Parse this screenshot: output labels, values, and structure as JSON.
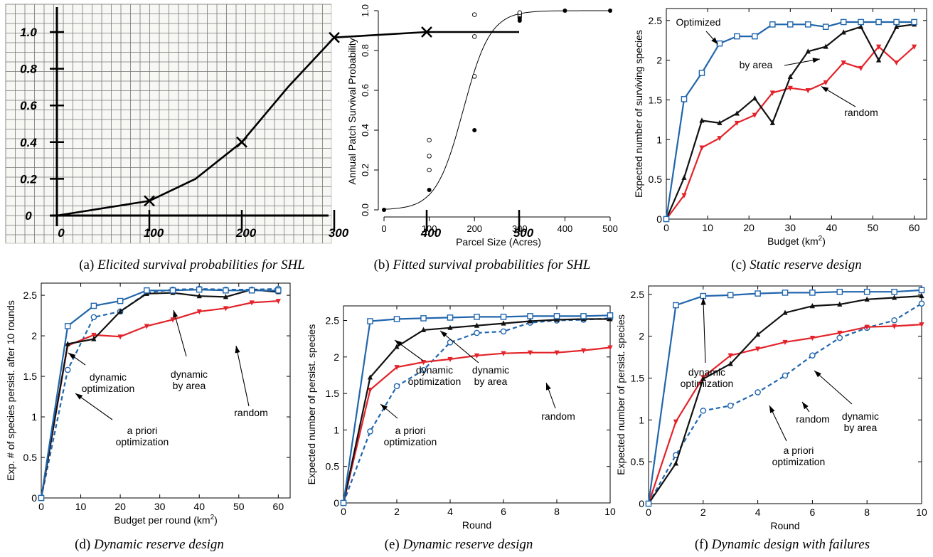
{
  "captions": {
    "a": {
      "label": "(a)",
      "text": "Elicited survival probabilities for SHL"
    },
    "b": {
      "label": "(b)",
      "text": "Fitted survival probabilities for SHL"
    },
    "c": {
      "label": "(c)",
      "text": "Static reserve design"
    },
    "d": {
      "label": "(d)",
      "text": "Dynamic reserve design"
    },
    "e": {
      "label": "(e)",
      "text": "Dynamic reserve design"
    },
    "f": {
      "label": "(f)",
      "text": "Dynamic design with failures"
    }
  },
  "colors": {
    "blue": "#2166ac",
    "black": "#111111",
    "red": "#e3232a"
  },
  "chart_data": [
    {
      "id": "a",
      "type": "line",
      "style": "hand-drawn on graph paper",
      "x_ticks": [
        "0",
        "100",
        "200",
        "300",
        "400",
        "500"
      ],
      "y_ticks": [
        "0",
        "0.2",
        "0.4",
        "0.6",
        "0.8",
        "1.0"
      ],
      "xlim": [
        0,
        500
      ],
      "ylim": [
        0,
        1.0
      ],
      "points": [
        [
          100,
          0.08
        ],
        [
          200,
          0.4
        ],
        [
          300,
          0.97
        ],
        [
          400,
          1.0
        ]
      ],
      "curve": [
        [
          0,
          0
        ],
        [
          100,
          0.08
        ],
        [
          150,
          0.2
        ],
        [
          200,
          0.4
        ],
        [
          250,
          0.7
        ],
        [
          300,
          0.97
        ],
        [
          400,
          1.0
        ],
        [
          500,
          1.0
        ]
      ]
    },
    {
      "id": "b",
      "type": "scatter",
      "xlabel": "Parcel Size (Acres)",
      "ylabel": "Annual Patch Survival Probability",
      "xlim": [
        0,
        500
      ],
      "ylim": [
        0,
        1.0
      ],
      "x_ticks": [
        0,
        100,
        200,
        300,
        400,
        500
      ],
      "y_ticks": [
        "0.0",
        "0.2",
        "0.4",
        "0.6",
        "0.8",
        "1.0"
      ],
      "filled_points": [
        [
          0,
          0.0
        ],
        [
          100,
          0.1
        ],
        [
          200,
          0.4
        ],
        [
          300,
          0.95
        ],
        [
          300,
          0.96
        ],
        [
          400,
          1.0
        ],
        [
          500,
          1.0
        ]
      ],
      "open_points": [
        [
          100,
          0.2
        ],
        [
          100,
          0.27
        ],
        [
          100,
          0.35
        ],
        [
          200,
          0.67
        ],
        [
          200,
          0.87
        ],
        [
          200,
          0.98
        ],
        [
          300,
          0.97
        ],
        [
          300,
          0.98
        ],
        [
          300,
          0.99
        ]
      ],
      "fit_curve": {
        "type": "logistic",
        "midpoint": 175,
        "scale": 30
      }
    },
    {
      "id": "c",
      "type": "line",
      "xlabel": "Budget (km²)",
      "ylabel": "Expected number of surviving species",
      "xlim": [
        0,
        63
      ],
      "ylim": [
        0,
        2.65
      ],
      "x_ticks": [
        0,
        10,
        20,
        30,
        40,
        50,
        60
      ],
      "y_ticks": [
        "0",
        "0.5",
        "1",
        "1.5",
        "2",
        "2.5"
      ],
      "series": [
        {
          "name": "Optimized",
          "color": "blue",
          "marker": "square",
          "x": [
            0,
            4.3,
            8.6,
            12.9,
            17.1,
            21.4,
            25.7,
            30,
            34.3,
            38.6,
            42.9,
            47.1,
            51.4,
            55.7,
            60
          ],
          "y": [
            0,
            1.51,
            1.84,
            2.21,
            2.3,
            2.3,
            2.45,
            2.45,
            2.45,
            2.42,
            2.48,
            2.48,
            2.48,
            2.48,
            2.48
          ]
        },
        {
          "name": "by area",
          "color": "black",
          "marker": "triangle-up",
          "x": [
            0,
            4.3,
            8.6,
            12.9,
            17.1,
            21.4,
            25.7,
            30,
            34.3,
            38.6,
            42.9,
            47.1,
            51.4,
            55.7,
            60
          ],
          "y": [
            0,
            0.52,
            1.24,
            1.21,
            1.33,
            1.52,
            1.21,
            1.79,
            2.11,
            2.17,
            2.35,
            2.42,
            2.0,
            2.42,
            2.45
          ]
        },
        {
          "name": "random",
          "color": "red",
          "marker": "triangle-down",
          "x": [
            0,
            4.3,
            8.6,
            12.9,
            17.1,
            21.4,
            25.7,
            30,
            34.3,
            38.6,
            42.9,
            47.1,
            51.4,
            55.7,
            60
          ],
          "y": [
            0,
            0.3,
            0.9,
            1.02,
            1.21,
            1.31,
            1.59,
            1.65,
            1.62,
            1.72,
            1.97,
            1.9,
            2.17,
            1.97,
            2.17
          ]
        }
      ],
      "annotations": [
        "Optimized",
        "by area",
        "random"
      ]
    },
    {
      "id": "d",
      "type": "line",
      "xlabel": "Budget per round (km²)",
      "ylabel": "Exp. # of species persist. after 10 rounds",
      "xlim": [
        0,
        63
      ],
      "ylim": [
        0,
        2.65
      ],
      "x_ticks": [
        0,
        10,
        20,
        30,
        40,
        50,
        60
      ],
      "y_ticks": [
        "0",
        "0.5",
        "1",
        "1.5",
        "2",
        "2.5"
      ],
      "series": [
        {
          "name": "dynamic optimization",
          "color": "blue",
          "marker": "square",
          "x": [
            0,
            6.7,
            13.3,
            20,
            26.7,
            33.3,
            40,
            46.7,
            53.3,
            60
          ],
          "y": [
            0,
            2.12,
            2.37,
            2.43,
            2.56,
            2.56,
            2.57,
            2.56,
            2.56,
            2.56
          ]
        },
        {
          "name": "a priori optimization",
          "color": "blue",
          "marker": "circle",
          "dashed": true,
          "x": [
            0,
            6.7,
            13.3,
            20,
            26.7,
            33.3,
            40,
            46.7,
            53.3,
            60
          ],
          "y": [
            0,
            1.58,
            2.23,
            2.3,
            2.53,
            2.57,
            2.58,
            2.57,
            2.57,
            2.58
          ]
        },
        {
          "name": "dynamic by area",
          "color": "black",
          "marker": "triangle-up",
          "x": [
            0,
            6.7,
            13.3,
            20,
            26.7,
            33.3,
            40,
            46.7,
            53.3,
            60
          ],
          "y": [
            0,
            1.9,
            1.96,
            2.3,
            2.52,
            2.53,
            2.49,
            2.48,
            2.57,
            2.54
          ]
        },
        {
          "name": "random",
          "color": "red",
          "marker": "triangle-down",
          "x": [
            0,
            6.7,
            13.3,
            20,
            26.7,
            33.3,
            40,
            46.7,
            53.3,
            60
          ],
          "y": [
            0,
            1.88,
            2.01,
            1.99,
            2.12,
            2.2,
            2.3,
            2.34,
            2.41,
            2.43
          ]
        }
      ],
      "annotations": [
        "dynamic optimization",
        "a priori optimization",
        "dynamic by area",
        "random"
      ]
    },
    {
      "id": "e",
      "type": "line",
      "xlabel": "Round",
      "ylabel": "Expected number of persist. species",
      "xlim": [
        0,
        10
      ],
      "ylim": [
        0,
        2.7
      ],
      "x_ticks": [
        0,
        2,
        4,
        6,
        8,
        10
      ],
      "y_ticks": [
        "0",
        "0.5",
        "1",
        "1.5",
        "2",
        "2.5"
      ],
      "series": [
        {
          "name": "dynamic optimization",
          "color": "blue",
          "marker": "square",
          "x": [
            0,
            1,
            2,
            3,
            4,
            5,
            6,
            7,
            8,
            9,
            10
          ],
          "y": [
            0,
            2.49,
            2.52,
            2.53,
            2.54,
            2.55,
            2.55,
            2.56,
            2.56,
            2.56,
            2.57
          ]
        },
        {
          "name": "a priori optimization",
          "color": "blue",
          "marker": "circle",
          "dashed": true,
          "x": [
            0,
            1,
            2,
            3,
            4,
            5,
            6,
            7,
            8,
            9,
            10
          ],
          "y": [
            0,
            0.98,
            1.6,
            1.82,
            2.2,
            2.33,
            2.35,
            2.47,
            2.5,
            2.51,
            2.53
          ]
        },
        {
          "name": "dynamic by area",
          "color": "black",
          "marker": "triangle-up",
          "x": [
            0,
            1,
            2,
            3,
            4,
            5,
            6,
            7,
            8,
            9,
            10
          ],
          "y": [
            0,
            1.72,
            2.14,
            2.37,
            2.4,
            2.43,
            2.46,
            2.49,
            2.51,
            2.52,
            2.52
          ]
        },
        {
          "name": "random",
          "color": "red",
          "marker": "triangle-down",
          "x": [
            0,
            1,
            2,
            3,
            4,
            5,
            6,
            7,
            8,
            9,
            10
          ],
          "y": [
            0,
            1.55,
            1.86,
            1.93,
            1.97,
            2.02,
            2.05,
            2.06,
            2.06,
            2.09,
            2.13
          ]
        }
      ],
      "annotations": [
        "dynamic optimization",
        "a priori optimization",
        "dynamic by area",
        "random"
      ]
    },
    {
      "id": "f",
      "type": "line",
      "xlabel": "Round",
      "ylabel": "Expected number of persist. species",
      "xlim": [
        0,
        10
      ],
      "ylim": [
        0,
        2.6
      ],
      "x_ticks": [
        0,
        2,
        4,
        6,
        8,
        10
      ],
      "y_ticks": [
        "0",
        "0.5",
        "1",
        "1.5",
        "2",
        "2.5"
      ],
      "series": [
        {
          "name": "dynamic optimization",
          "color": "blue",
          "marker": "square",
          "x": [
            0,
            1,
            2,
            3,
            4,
            5,
            6,
            7,
            8,
            9,
            10
          ],
          "y": [
            0,
            2.37,
            2.48,
            2.49,
            2.51,
            2.52,
            2.52,
            2.53,
            2.53,
            2.53,
            2.55
          ]
        },
        {
          "name": "a priori optimization",
          "color": "blue",
          "marker": "circle",
          "dashed": true,
          "x": [
            0,
            1,
            2,
            3,
            4,
            5,
            6,
            7,
            8,
            9,
            10
          ],
          "y": [
            0,
            0.58,
            1.11,
            1.17,
            1.33,
            1.53,
            1.77,
            1.98,
            2.1,
            2.19,
            2.39
          ]
        },
        {
          "name": "dynamic by area",
          "color": "black",
          "marker": "triangle-up",
          "x": [
            0,
            1,
            2,
            3,
            4,
            5,
            6,
            7,
            8,
            9,
            10
          ],
          "y": [
            0,
            0.48,
            1.49,
            1.67,
            2.02,
            2.28,
            2.36,
            2.38,
            2.44,
            2.46,
            2.48
          ]
        },
        {
          "name": "random",
          "color": "red",
          "marker": "triangle-down",
          "x": [
            0,
            1,
            2,
            3,
            4,
            5,
            6,
            7,
            8,
            9,
            10
          ],
          "y": [
            0,
            0.98,
            1.51,
            1.77,
            1.85,
            1.93,
            1.98,
            2.04,
            2.11,
            2.12,
            2.14
          ]
        }
      ],
      "annotations": [
        "dynamic optimization",
        "a priori optimization",
        "dynamic by area",
        "random"
      ]
    }
  ]
}
